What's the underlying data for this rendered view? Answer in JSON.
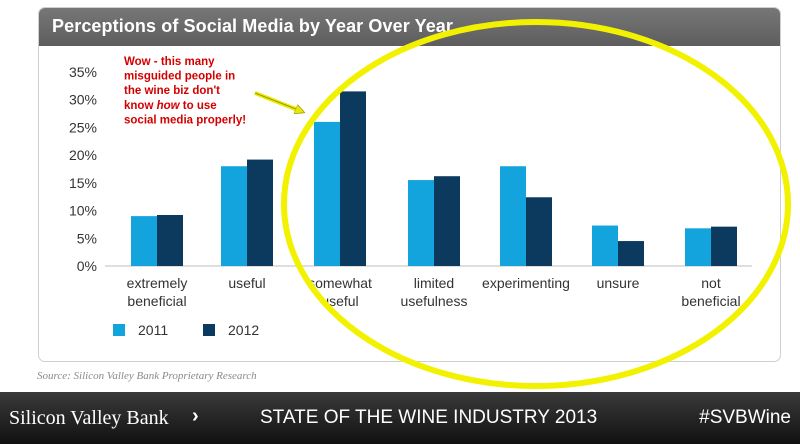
{
  "chart_data": {
    "type": "bar",
    "title": "Perceptions of Social Media by Year Over Year",
    "categories": [
      [
        "extremely",
        "beneficial"
      ],
      [
        "useful"
      ],
      [
        "somewhat",
        "useful"
      ],
      [
        "limited",
        "usefulness"
      ],
      [
        "experimenting"
      ],
      [
        "unsure"
      ],
      [
        "not",
        "beneficial"
      ]
    ],
    "series": [
      {
        "name": "2011",
        "color": "#13a3dd",
        "values": [
          9,
          18,
          26,
          15.5,
          18,
          7.3,
          6.8
        ]
      },
      {
        "name": "2012",
        "color": "#0b3a5e",
        "values": [
          9.2,
          19.2,
          31.5,
          16.2,
          12.4,
          4.5,
          7.1
        ]
      }
    ],
    "ylim": [
      0,
      35
    ],
    "yticks": [
      "0%",
      "5%",
      "10%",
      "15%",
      "20%",
      "25%",
      "30%",
      "35%"
    ],
    "ytick_values": [
      0,
      5,
      10,
      15,
      20,
      25,
      30,
      35
    ],
    "legend_position": "bottom-left",
    "grid": false,
    "annotation": {
      "lines": [
        [
          "Wow - this many"
        ],
        [
          "misguided people in"
        ],
        [
          "the wine biz don't"
        ],
        [
          "know ",
          "*how*",
          " to use"
        ],
        [
          "social media properly!"
        ]
      ],
      "color": "#d40000",
      "arrow_color": "#e8e800",
      "highlight_ellipse_color": "#f2f200",
      "highlight_target_categories": [
        "somewhat useful",
        "limited usefulness",
        "experimenting",
        "unsure",
        "not beneficial"
      ]
    }
  },
  "source": "Source: Silicon Valley Bank Proprietary Research",
  "footer": {
    "brand": "Silicon Valley Bank",
    "chevron": "›",
    "title": "STATE OF THE WINE INDUSTRY 2013",
    "hashtag": "#SVBWine"
  }
}
